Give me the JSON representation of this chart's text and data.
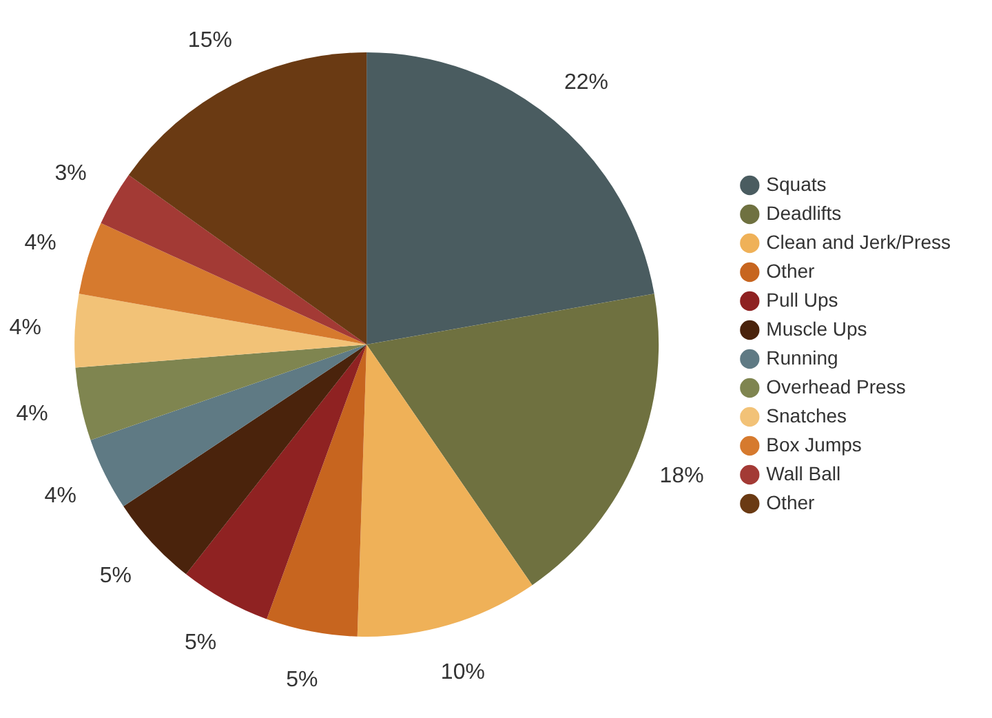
{
  "chart_data": {
    "type": "pie",
    "categories": [
      "Squats",
      "Deadlifts",
      "Clean and Jerk/Press",
      "Other",
      "Pull Ups",
      "Muscle Ups",
      "Running",
      "Overhead Press",
      "Snatches",
      "Box Jumps",
      "Wall Ball",
      "Other"
    ],
    "values": [
      22,
      18,
      10,
      5,
      5,
      5,
      4,
      4,
      4,
      4,
      3,
      15
    ],
    "colors": [
      "#4a5c60",
      "#6f7140",
      "#efb158",
      "#c7651f",
      "#8f2222",
      "#4a230c",
      "#5f7a84",
      "#7f8550",
      "#f2c277",
      "#d67a2e",
      "#a33a35",
      "#6a3a13"
    ],
    "value_labels": [
      "22%",
      "18%",
      "10%",
      "5%",
      "5%",
      "5%",
      "4%",
      "4%",
      "4%",
      "4%",
      "3%",
      "15%"
    ],
    "legend": "right"
  }
}
